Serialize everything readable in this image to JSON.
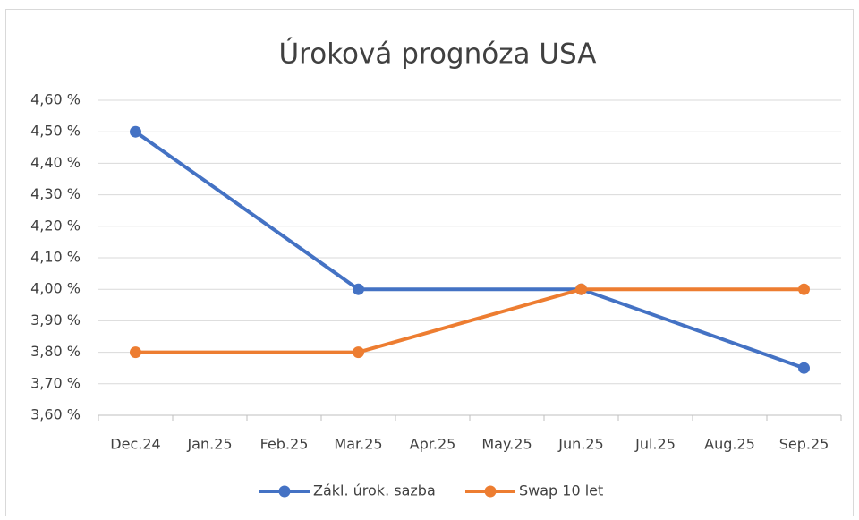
{
  "chart_data": {
    "type": "line",
    "title": "Úroková prognóza USA",
    "categories": [
      "Dec.24",
      "Jan.25",
      "Feb.25",
      "Mar.25",
      "Apr.25",
      "May.25",
      "Jun.25",
      "Jul.25",
      "Aug.25",
      "Sep.25"
    ],
    "series": [
      {
        "name": "Zákl. úrok. sazba",
        "color": "#4472c4",
        "values": [
          4.5,
          null,
          null,
          4.0,
          null,
          null,
          4.0,
          null,
          null,
          3.75
        ]
      },
      {
        "name": "Swap 10 let",
        "color": "#ed7d31",
        "values": [
          3.8,
          null,
          null,
          3.8,
          null,
          null,
          4.0,
          null,
          null,
          4.0
        ]
      }
    ],
    "span_gaps": true,
    "ylim": [
      3.6,
      4.6
    ],
    "yticks": [
      {
        "value": 3.6,
        "label": "3,60 %"
      },
      {
        "value": 3.7,
        "label": "3,70 %"
      },
      {
        "value": 3.8,
        "label": "3,80 %"
      },
      {
        "value": 3.9,
        "label": "3,90 %"
      },
      {
        "value": 4.0,
        "label": "4,00 %"
      },
      {
        "value": 4.1,
        "label": "4,10 %"
      },
      {
        "value": 4.2,
        "label": "4,20 %"
      },
      {
        "value": 4.3,
        "label": "4,30 %"
      },
      {
        "value": 4.4,
        "label": "4,40 %"
      },
      {
        "value": 4.5,
        "label": "4,50 %"
      },
      {
        "value": 4.6,
        "label": "4,60 %"
      }
    ],
    "grid": true,
    "legend": "bottom"
  }
}
